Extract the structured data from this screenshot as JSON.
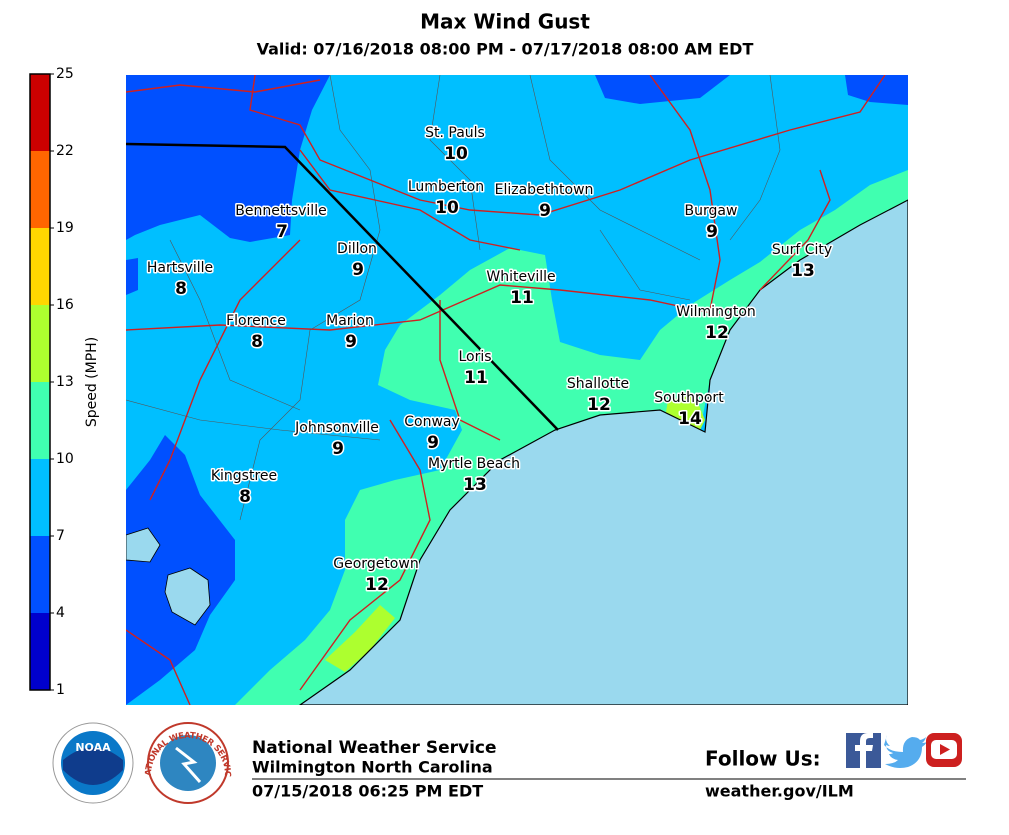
{
  "header": {
    "title": "Max Wind Gust",
    "subtitle": "Valid: 07/16/2018 08:00 PM - 07/17/2018 08:00 AM EDT"
  },
  "legend": {
    "label": "Speed (MPH)",
    "ticks": [
      1,
      4,
      7,
      10,
      13,
      16,
      19,
      22,
      25
    ],
    "colors": [
      "#0000cd",
      "#0050ff",
      "#00bfff",
      "#40ffb0",
      "#adff2f",
      "#ffd700",
      "#ff6600",
      "#cc0000"
    ]
  },
  "cities": [
    {
      "name": "St. Pauls",
      "value": 10
    },
    {
      "name": "Lumberton",
      "value": 10
    },
    {
      "name": "Elizabethtown",
      "value": 9
    },
    {
      "name": "Burgaw",
      "value": 9
    },
    {
      "name": "Bennettsville",
      "value": 7
    },
    {
      "name": "Dillon",
      "value": 9
    },
    {
      "name": "Hartsville",
      "value": 8
    },
    {
      "name": "Surf City",
      "value": 13
    },
    {
      "name": "Whiteville",
      "value": 11
    },
    {
      "name": "Wilmington",
      "value": 12
    },
    {
      "name": "Florence",
      "value": 8
    },
    {
      "name": "Marion",
      "value": 9
    },
    {
      "name": "Loris",
      "value": 11
    },
    {
      "name": "Shallotte",
      "value": 12
    },
    {
      "name": "Southport",
      "value": 14
    },
    {
      "name": "Johnsonville",
      "value": 9
    },
    {
      "name": "Conway",
      "value": 9
    },
    {
      "name": "Myrtle Beach",
      "value": 13
    },
    {
      "name": "Kingstree",
      "value": 8
    },
    {
      "name": "Georgetown",
      "value": 12
    }
  ],
  "footer": {
    "agency": "National Weather Service",
    "office": "Wilmington North Carolina",
    "issued": "07/15/2018 06:25 PM EDT",
    "follow": "Follow Us:",
    "website": "weather.gov/ILM",
    "noaa_logo": "NOAA",
    "nws_logo": "NATIONAL WEATHER SERVICE"
  }
}
